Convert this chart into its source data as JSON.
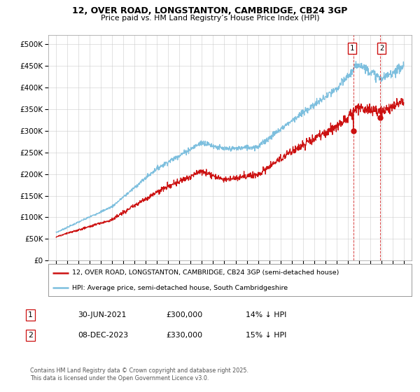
{
  "title_line1": "12, OVER ROAD, LONGSTANTON, CAMBRIDGE, CB24 3GP",
  "title_line2": "Price paid vs. HM Land Registry’s House Price Index (HPI)",
  "ylim": [
    0,
    520000
  ],
  "yticks": [
    0,
    50000,
    100000,
    150000,
    200000,
    250000,
    300000,
    350000,
    400000,
    450000,
    500000
  ],
  "x_start_year": 1995,
  "x_end_year": 2026,
  "hpi_color": "#7dbfde",
  "price_color": "#cc1111",
  "sale1_year": 2021.5,
  "sale1_price": 300000,
  "sale1_date": "30-JUN-2021",
  "sale1_pct": "14% ↓ HPI",
  "sale2_year": 2023.92,
  "sale2_price": 330000,
  "sale2_date": "08-DEC-2023",
  "sale2_pct": "15% ↓ HPI",
  "legend_label1": "12, OVER ROAD, LONGSTANTON, CAMBRIDGE, CB24 3GP (semi-detached house)",
  "legend_label2": "HPI: Average price, semi-detached house, South Cambridgeshire",
  "footnote": "Contains HM Land Registry data © Crown copyright and database right 2025.\nThis data is licensed under the Open Government Licence v3.0."
}
